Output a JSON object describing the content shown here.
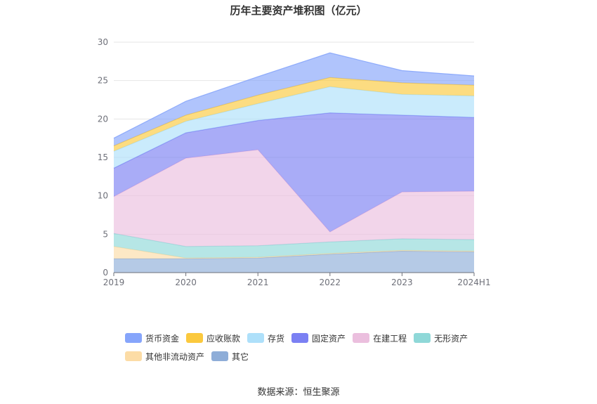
{
  "chart_data": {
    "type": "area",
    "stacked": true,
    "title": "历年主要资产堆积图（亿元）",
    "categories": [
      "2019",
      "2020",
      "2021",
      "2022",
      "2023",
      "2024H1"
    ],
    "ylim": [
      0,
      30
    ],
    "yticks": [
      0,
      5,
      10,
      15,
      20,
      25,
      30
    ],
    "grid": true,
    "legend_position": "bottom",
    "series": [
      {
        "name": "其它",
        "color": "#8eadd8",
        "values": [
          1.8,
          1.8,
          1.9,
          2.4,
          2.8,
          2.7
        ]
      },
      {
        "name": "其他非流动资产",
        "color": "#fcdca6",
        "values": [
          1.6,
          0.1,
          0.1,
          0.1,
          0.1,
          0.1
        ]
      },
      {
        "name": "无形资产",
        "color": "#8fd8d8",
        "values": [
          1.7,
          1.5,
          1.5,
          1.5,
          1.5,
          1.5
        ]
      },
      {
        "name": "在建工程",
        "color": "#ebbfde",
        "values": [
          4.8,
          11.5,
          12.5,
          1.3,
          6.1,
          6.3
        ]
      },
      {
        "name": "固定资产",
        "color": "#7b80f3",
        "values": [
          3.7,
          3.3,
          3.8,
          15.5,
          10.0,
          9.6
        ]
      },
      {
        "name": "存货",
        "color": "#aee0fa",
        "values": [
          2.2,
          1.5,
          2.2,
          3.4,
          2.7,
          2.8
        ]
      },
      {
        "name": "应收账款",
        "color": "#fbc93e",
        "values": [
          0.7,
          0.8,
          1.1,
          1.2,
          1.5,
          1.4
        ]
      },
      {
        "name": "货币资金",
        "color": "#86a5fb",
        "values": [
          1.0,
          1.8,
          2.4,
          3.2,
          1.6,
          1.2
        ]
      }
    ]
  },
  "legend": {
    "items": [
      {
        "label": "货币资金",
        "color": "#86a5fb"
      },
      {
        "label": "应收账款",
        "color": "#fbc93e"
      },
      {
        "label": "存货",
        "color": "#aee0fa"
      },
      {
        "label": "固定资产",
        "color": "#7b80f3"
      },
      {
        "label": "在建工程",
        "color": "#ebbfde"
      },
      {
        "label": "无形资产",
        "color": "#8fd8d8"
      },
      {
        "label": "其他非流动资产",
        "color": "#fcdca6"
      },
      {
        "label": "其它",
        "color": "#8eadd8"
      }
    ]
  },
  "footer": {
    "source": "数据来源：恒生聚源"
  }
}
